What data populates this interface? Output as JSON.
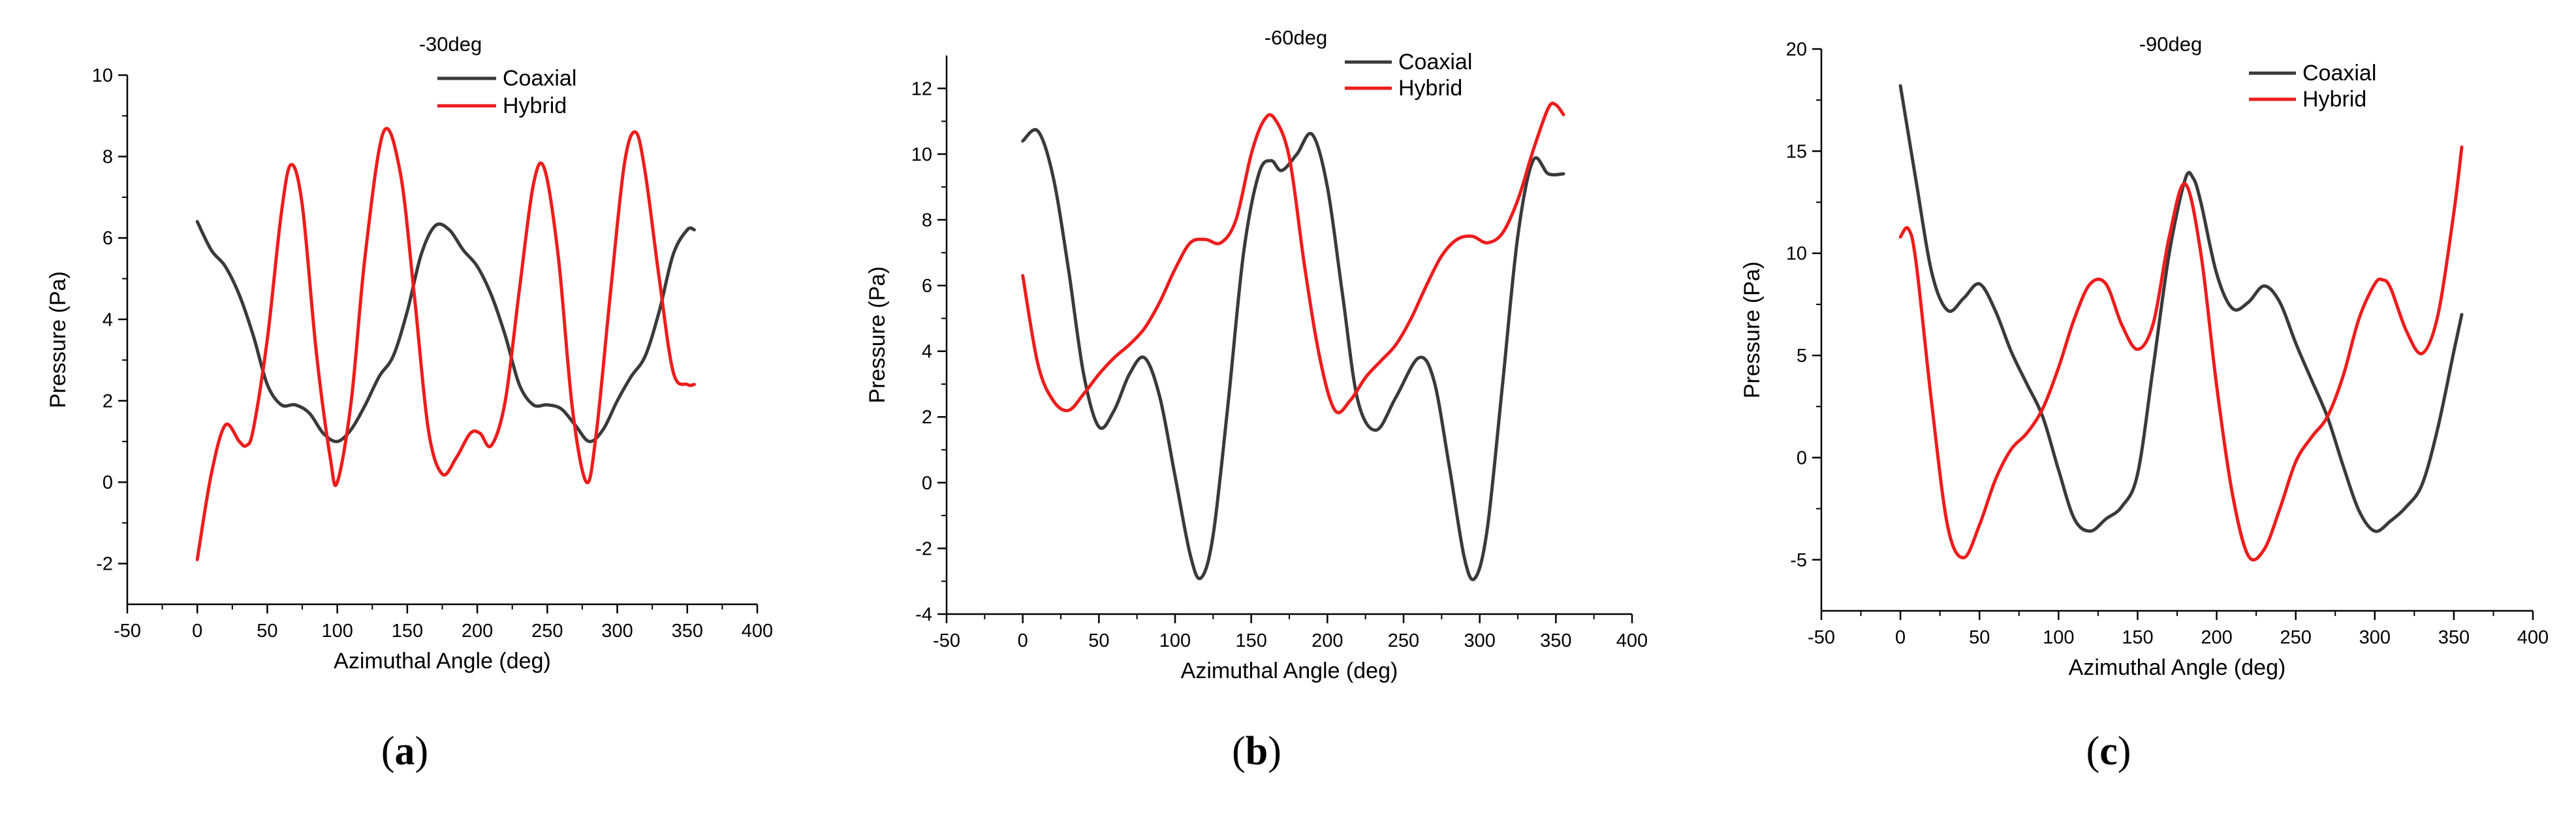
{
  "figure": {
    "panels": [
      {
        "label_open": "(",
        "label_letter": "a",
        "label_close": ")"
      },
      {
        "label_open": "(",
        "label_letter": "b",
        "label_close": ")"
      },
      {
        "label_open": "(",
        "label_letter": "c",
        "label_close": ")"
      }
    ]
  },
  "colors": {
    "coaxial": "#3a3a3a",
    "hybrid": "#ee1c1c",
    "axis": "#000000",
    "background": "#ffffff"
  },
  "chart_data": [
    {
      "type": "line",
      "title": "-30deg",
      "xlabel": "Azimuthal Angle (deg)",
      "ylabel": "Pressure (Pa)",
      "xlim": [
        -50,
        400
      ],
      "ylim": [
        -3,
        10
      ],
      "xticks": [
        -50,
        0,
        50,
        100,
        150,
        200,
        250,
        300,
        350,
        400
      ],
      "yticks": [
        -2,
        0,
        2,
        4,
        6,
        8,
        10
      ],
      "legend_position": "top-center",
      "series": [
        {
          "name": "Coaxial",
          "color_key": "coaxial",
          "x": [
            0,
            10,
            20,
            30,
            40,
            50,
            60,
            70,
            80,
            90,
            100,
            110,
            120,
            130,
            140,
            150,
            160,
            170,
            180,
            190,
            200,
            210,
            220,
            230,
            240,
            250,
            260,
            270,
            280,
            290,
            300,
            310,
            320,
            330,
            340,
            350,
            355
          ],
          "y": [
            6.4,
            5.7,
            5.3,
            4.6,
            3.6,
            2.4,
            1.9,
            1.9,
            1.7,
            1.2,
            1.0,
            1.3,
            1.9,
            2.6,
            3.1,
            4.2,
            5.6,
            6.3,
            6.2,
            5.7,
            5.3,
            4.6,
            3.6,
            2.4,
            1.9,
            1.9,
            1.8,
            1.4,
            1.0,
            1.3,
            2.0,
            2.6,
            3.1,
            4.2,
            5.6,
            6.2,
            6.2
          ]
        },
        {
          "name": "Hybrid",
          "color_key": "hybrid",
          "x": [
            0,
            10,
            20,
            30,
            35,
            40,
            50,
            60,
            67,
            75,
            85,
            95,
            100,
            110,
            120,
            133,
            145,
            155,
            165,
            175,
            185,
            195,
            202,
            210,
            220,
            230,
            240,
            248,
            258,
            268,
            278,
            285,
            295,
            305,
            313,
            320,
            330,
            340,
            350,
            355
          ],
          "y": [
            -1.9,
            0.2,
            1.4,
            1.0,
            0.9,
            1.3,
            3.5,
            6.6,
            7.8,
            6.8,
            3.2,
            0.6,
            0.0,
            2.0,
            5.6,
            8.6,
            7.6,
            4.6,
            1.3,
            0.2,
            0.6,
            1.2,
            1.2,
            0.9,
            2.0,
            4.7,
            7.3,
            7.7,
            5.5,
            1.8,
            0.0,
            1.2,
            4.6,
            7.8,
            8.6,
            7.6,
            5.0,
            2.7,
            2.4,
            2.4
          ]
        }
      ]
    },
    {
      "type": "line",
      "title": "-60deg",
      "xlabel": "Azimuthal Angle (deg)",
      "ylabel": "Pressure (Pa)",
      "xlim": [
        -50,
        400
      ],
      "ylim": [
        -4,
        13
      ],
      "xticks": [
        -50,
        0,
        50,
        100,
        150,
        200,
        250,
        300,
        350,
        400
      ],
      "yticks": [
        -4,
        -2,
        0,
        2,
        4,
        6,
        8,
        10,
        12
      ],
      "legend_position": "top-right",
      "series": [
        {
          "name": "Coaxial",
          "color_key": "coaxial",
          "x": [
            0,
            10,
            20,
            30,
            40,
            50,
            60,
            70,
            80,
            90,
            100,
            110,
            117,
            125,
            135,
            145,
            155,
            163,
            170,
            180,
            190,
            200,
            210,
            220,
            232,
            245,
            260,
            270,
            280,
            290,
            297,
            305,
            315,
            325,
            335,
            345,
            355
          ],
          "y": [
            10.4,
            10.7,
            9.3,
            6.5,
            3.3,
            1.7,
            2.2,
            3.3,
            3.8,
            2.6,
            0.2,
            -2.2,
            -2.9,
            -1.6,
            2.5,
            7.0,
            9.4,
            9.8,
            9.5,
            10.0,
            10.6,
            9.0,
            5.7,
            2.5,
            1.6,
            2.6,
            3.8,
            3.1,
            0.5,
            -2.3,
            -2.9,
            -1.4,
            3.0,
            7.5,
            9.8,
            9.4,
            9.4
          ]
        },
        {
          "name": "Hybrid",
          "color_key": "hybrid",
          "x": [
            0,
            10,
            20,
            30,
            40,
            50,
            60,
            70,
            80,
            90,
            100,
            110,
            120,
            130,
            140,
            150,
            158,
            165,
            175,
            185,
            195,
            205,
            215,
            225,
            235,
            245,
            255,
            265,
            275,
            285,
            295,
            305,
            315,
            325,
            335,
            345,
            350,
            355
          ],
          "y": [
            6.3,
            3.6,
            2.5,
            2.2,
            2.7,
            3.3,
            3.8,
            4.2,
            4.7,
            5.5,
            6.5,
            7.3,
            7.4,
            7.3,
            8.0,
            10.0,
            11.0,
            11.1,
            9.9,
            6.6,
            3.8,
            2.2,
            2.5,
            3.2,
            3.7,
            4.2,
            5.0,
            6.0,
            6.9,
            7.4,
            7.5,
            7.3,
            7.6,
            8.6,
            10.1,
            11.4,
            11.5,
            11.2
          ]
        }
      ]
    },
    {
      "type": "line",
      "title": "-90deg",
      "xlabel": "Azimuthal Angle (deg)",
      "ylabel": "Pressure (Pa)",
      "xlim": [
        -50,
        400
      ],
      "ylim": [
        -7.5,
        20
      ],
      "xticks": [
        -50,
        0,
        50,
        100,
        150,
        200,
        250,
        300,
        350,
        400
      ],
      "yticks": [
        -5,
        0,
        5,
        10,
        15,
        20
      ],
      "legend_position": "top-right",
      "series": [
        {
          "name": "Coaxial",
          "color_key": "coaxial",
          "x": [
            0,
            10,
            20,
            30,
            40,
            50,
            60,
            70,
            80,
            90,
            100,
            110,
            120,
            130,
            140,
            150,
            160,
            170,
            180,
            185,
            190,
            200,
            210,
            220,
            230,
            240,
            250,
            260,
            270,
            280,
            290,
            300,
            310,
            320,
            330,
            340,
            350,
            355
          ],
          "y": [
            18.2,
            13.5,
            9.0,
            7.2,
            7.8,
            8.5,
            7.2,
            5.2,
            3.6,
            2.0,
            -0.6,
            -3.0,
            -3.6,
            -3.0,
            -2.4,
            -0.8,
            4.5,
            10.0,
            13.6,
            13.7,
            12.5,
            9.0,
            7.3,
            7.6,
            8.4,
            7.6,
            5.6,
            3.8,
            2.0,
            -0.4,
            -2.6,
            -3.6,
            -3.1,
            -2.4,
            -1.3,
            1.5,
            5.2,
            7.0
          ]
        },
        {
          "name": "Hybrid",
          "color_key": "hybrid",
          "x": [
            0,
            5,
            10,
            20,
            30,
            40,
            50,
            60,
            70,
            80,
            90,
            100,
            110,
            120,
            130,
            140,
            150,
            160,
            170,
            180,
            190,
            200,
            210,
            220,
            230,
            240,
            250,
            260,
            270,
            280,
            290,
            300,
            305,
            310,
            320,
            330,
            340,
            350,
            355
          ],
          "y": [
            10.8,
            11.2,
            9.5,
            2.5,
            -3.4,
            -4.9,
            -3.3,
            -1.1,
            0.4,
            1.2,
            2.4,
            4.4,
            6.8,
            8.5,
            8.5,
            6.5,
            5.3,
            6.6,
            10.8,
            13.4,
            10.0,
            3.5,
            -1.8,
            -4.8,
            -4.5,
            -2.5,
            -0.2,
            1.0,
            2.0,
            4.0,
            6.8,
            8.5,
            8.7,
            8.3,
            6.2,
            5.1,
            7.0,
            12.0,
            15.2
          ]
        }
      ]
    }
  ]
}
